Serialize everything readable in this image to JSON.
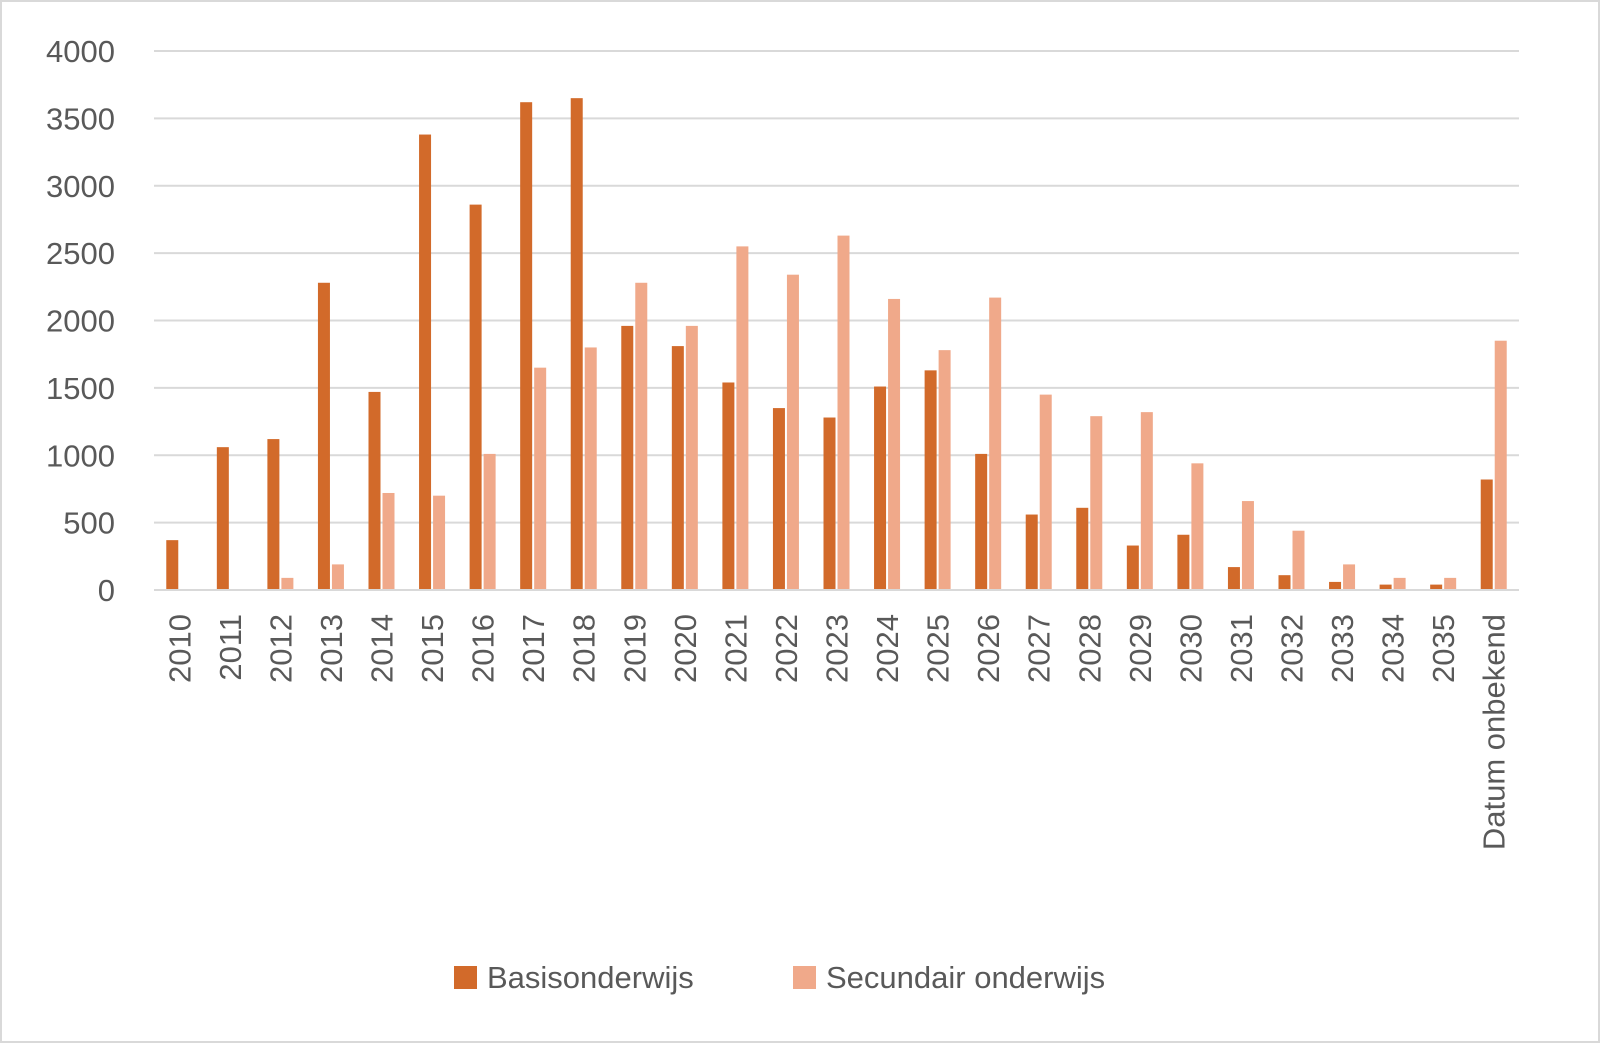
{
  "chart_data": {
    "type": "bar",
    "categories": [
      "2010",
      "2011",
      "2012",
      "2013",
      "2014",
      "2015",
      "2016",
      "2017",
      "2018",
      "2019",
      "2020",
      "2021",
      "2022",
      "2023",
      "2024",
      "2025",
      "2026",
      "2027",
      "2028",
      "2029",
      "2030",
      "2031",
      "2032",
      "2033",
      "2034",
      "2035",
      "Datum onbekend"
    ],
    "series": [
      {
        "name": "Basisonderwijs",
        "color": "#d26a2a",
        "values": [
          370,
          1060,
          1120,
          2280,
          1470,
          3380,
          2860,
          3620,
          3650,
          1960,
          1810,
          1540,
          1350,
          1280,
          1510,
          1630,
          1010,
          560,
          610,
          330,
          410,
          170,
          110,
          60,
          40,
          40,
          820
        ]
      },
      {
        "name": "Secundair onderwijs",
        "color": "#f0a98a",
        "values": [
          0,
          0,
          90,
          190,
          720,
          700,
          1010,
          1650,
          1800,
          2280,
          1960,
          2550,
          2340,
          2630,
          2160,
          1780,
          2170,
          1450,
          1290,
          1320,
          940,
          660,
          440,
          190,
          90,
          90,
          1850
        ]
      }
    ],
    "ylim": [
      0,
      4000
    ],
    "yticks": [
      "0",
      "500",
      "1000",
      "1500",
      "2000",
      "2500",
      "3000",
      "3500",
      "4000"
    ],
    "grid": true,
    "legend_position": "bottom",
    "gridline_color": "#d9d9d9"
  }
}
